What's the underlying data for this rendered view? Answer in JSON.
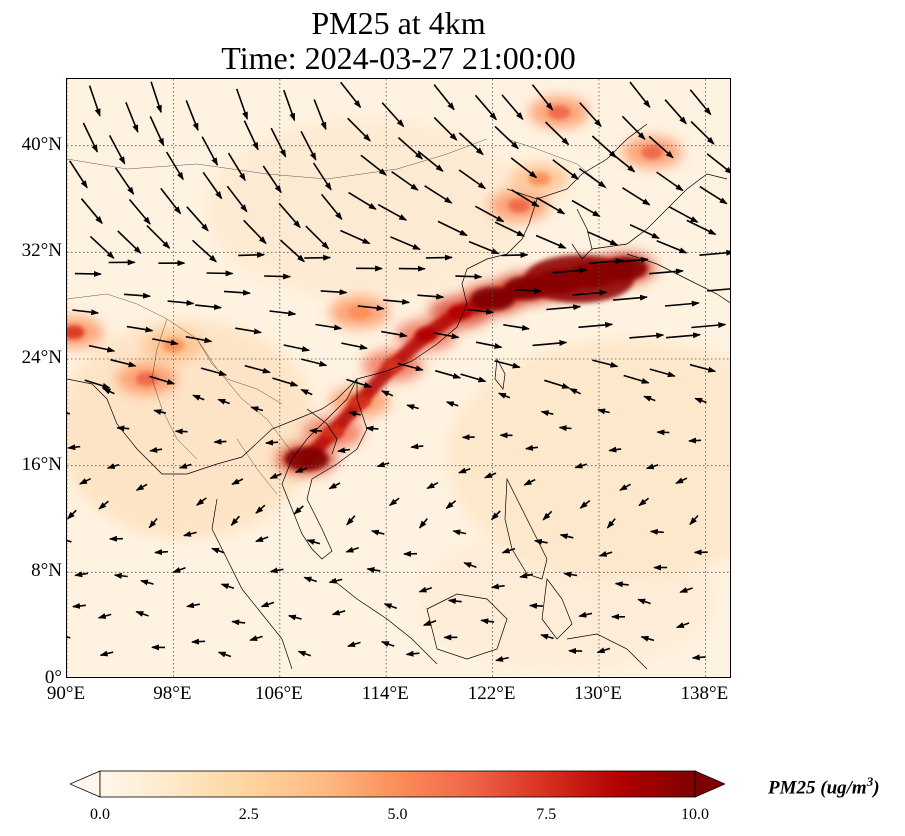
{
  "title_line1": "PM25 at 4km",
  "title_line2": "Time: 2024-03-27 21:00:00",
  "map": {
    "region": "East and Southeast Asia",
    "lon_range": [
      90,
      140
    ],
    "lat_range": [
      0,
      45
    ],
    "lat_ticks": [
      {
        "value": 40,
        "label": "40°N"
      },
      {
        "value": 32,
        "label": "32°N"
      },
      {
        "value": 24,
        "label": "24°N"
      },
      {
        "value": 16,
        "label": "16°N"
      },
      {
        "value": 8,
        "label": "8°N"
      },
      {
        "value": 0,
        "label": "0°"
      }
    ],
    "lon_ticks": [
      {
        "value": 90,
        "label": "90°E"
      },
      {
        "value": 98,
        "label": "98°E"
      },
      {
        "value": 106,
        "label": "106°E"
      },
      {
        "value": 114,
        "label": "114°E"
      },
      {
        "value": 122,
        "label": "122°E"
      },
      {
        "value": 130,
        "label": "130°E"
      },
      {
        "value": 138,
        "label": "138°E"
      }
    ],
    "gridlines": "dotted",
    "field": "PM2.5 concentration with wind vectors",
    "plume_points": [
      {
        "lon": 108,
        "lat": 16.5,
        "v": 9.5
      },
      {
        "lon": 110,
        "lat": 18.5,
        "v": 7.5
      },
      {
        "lon": 112,
        "lat": 20.8,
        "v": 7
      },
      {
        "lon": 114.5,
        "lat": 23.5,
        "v": 8
      },
      {
        "lon": 117,
        "lat": 25.8,
        "v": 8.5
      },
      {
        "lon": 119.5,
        "lat": 27.5,
        "v": 9
      },
      {
        "lon": 122,
        "lat": 28.5,
        "v": 9.5
      },
      {
        "lon": 124.5,
        "lat": 29.3,
        "v": 10
      },
      {
        "lon": 127,
        "lat": 29.8,
        "v": 10
      },
      {
        "lon": 129.5,
        "lat": 30.3,
        "v": 10
      },
      {
        "lon": 132,
        "lat": 30.8,
        "v": 9.5
      },
      {
        "lon": 124,
        "lat": 35.5,
        "v": 6
      },
      {
        "lon": 125.5,
        "lat": 37.5,
        "v": 4.5
      },
      {
        "lon": 127,
        "lat": 42.5,
        "v": 6
      },
      {
        "lon": 134,
        "lat": 39.5,
        "v": 6
      },
      {
        "lon": 112,
        "lat": 27.5,
        "v": 5.5
      },
      {
        "lon": 98,
        "lat": 25,
        "v": 5
      },
      {
        "lon": 96,
        "lat": 22.5,
        "v": 6
      },
      {
        "lon": 90.5,
        "lat": 26,
        "v": 7
      }
    ]
  },
  "colorbar": {
    "min": 0.0,
    "max": 10.0,
    "colormap": "OrRd",
    "colors": [
      "#fff7ec",
      "#fee8c8",
      "#fdd49e",
      "#fdbb84",
      "#fc8d59",
      "#ef6548",
      "#d7301f",
      "#b30000",
      "#7f0000"
    ],
    "ticks": [
      "0.0",
      "2.5",
      "5.0",
      "7.5",
      "10.0"
    ],
    "label": "PM25 (ug/m",
    "label_sup": "3",
    "label_close": ")"
  }
}
